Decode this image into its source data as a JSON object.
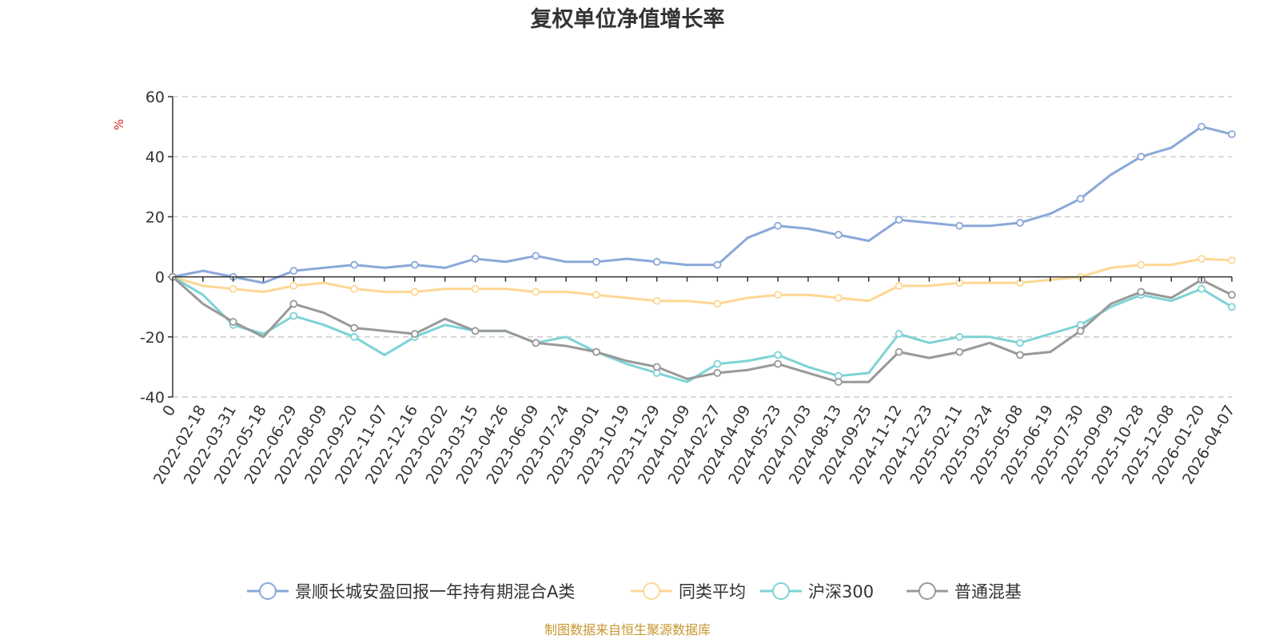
{
  "chart_data": {
    "type": "line",
    "title": "复权单位净值增长率",
    "ylabel": "%",
    "ylim": [
      -40,
      60
    ],
    "yticks": [
      "60",
      "40",
      "20",
      "0",
      "-20",
      "-40"
    ],
    "xticks": [
      "0",
      "2022-02-18",
      "2022-03-31",
      "2022-05-18",
      "2022-06-29",
      "2022-08-09",
      "2022-09-20",
      "2022-11-07",
      "2022-12-16",
      "2023-02-02",
      "2023-03-15",
      "2023-04-26",
      "2023-06-09",
      "2023-07-24",
      "2023-09-01",
      "2023-10-19",
      "2023-11-29",
      "2024-01-09",
      "2024-02-27",
      "2024-04-09",
      "2024-05-23",
      "2024-07-03",
      "2024-08-13",
      "2024-09-25",
      "2024-11-12",
      "2024-12-23",
      "2025-02-11",
      "2025-03-24",
      "2025-05-08",
      "2025-06-19",
      "2025-07-30",
      "2025-09-09",
      "2025-10-28",
      "2025-12-08",
      "2026-01-20",
      "2026-04-07"
    ],
    "grid": true,
    "legend_position": "bottom",
    "series": [
      {
        "name": "景顺长城安盈回报一年持有期混合A类",
        "color": "#8aa8d9",
        "x": [
          0,
          1,
          2,
          3,
          4,
          5,
          6,
          7,
          8,
          9,
          10,
          11,
          12,
          13,
          14,
          15,
          16,
          17,
          18,
          19,
          20,
          21,
          22,
          23,
          24,
          25,
          26,
          27,
          28,
          29,
          30,
          31,
          32,
          33,
          34,
          35
        ],
        "values": [
          0,
          2,
          0,
          -2,
          2,
          3,
          4,
          3,
          4,
          3,
          6,
          5,
          7,
          5,
          5,
          6,
          5,
          4,
          4,
          13,
          17,
          16,
          14,
          12,
          19,
          18,
          17,
          17,
          18,
          21,
          26,
          34,
          40,
          43,
          50,
          47.5
        ]
      },
      {
        "name": "同类平均",
        "color": "#fdd794",
        "x": [
          0,
          1,
          2,
          3,
          4,
          5,
          6,
          7,
          8,
          9,
          10,
          11,
          12,
          13,
          14,
          15,
          16,
          17,
          18,
          19,
          20,
          21,
          22,
          23,
          24,
          25,
          26,
          27,
          28,
          29,
          30,
          31,
          32,
          33,
          34,
          35
        ],
        "values": [
          0,
          -3,
          -4,
          -5,
          -3,
          -2,
          -4,
          -5,
          -5,
          -4,
          -4,
          -4,
          -5,
          -5,
          -6,
          -7,
          -8,
          -8,
          -9,
          -7,
          -6,
          -6,
          -7,
          -8,
          -3,
          -3,
          -2,
          -2,
          -2,
          -1,
          0,
          3,
          4,
          4,
          6,
          5.5
        ]
      },
      {
        "name": "沪深300",
        "color": "#7dd3d6",
        "x": [
          0,
          1,
          2,
          3,
          4,
          5,
          6,
          7,
          8,
          9,
          10,
          11,
          12,
          13,
          14,
          15,
          16,
          17,
          18,
          19,
          20,
          21,
          22,
          23,
          24,
          25,
          26,
          27,
          28,
          29,
          30,
          31,
          32,
          33,
          34,
          35
        ],
        "values": [
          0,
          -6,
          -16,
          -19,
          -13,
          -16,
          -20,
          -26,
          -20,
          -16,
          -18,
          -18,
          -22,
          -20,
          -25,
          -29,
          -32,
          -35,
          -29,
          -28,
          -26,
          -30,
          -33,
          -32,
          -19,
          -22,
          -20,
          -20,
          -22,
          -19,
          -16,
          -10,
          -6,
          -8,
          -4,
          -10
        ]
      },
      {
        "name": "普通混基",
        "color": "#999999",
        "x": [
          0,
          1,
          2,
          3,
          4,
          5,
          6,
          7,
          8,
          9,
          10,
          11,
          12,
          13,
          14,
          15,
          16,
          17,
          18,
          19,
          20,
          21,
          22,
          23,
          24,
          25,
          26,
          27,
          28,
          29,
          30,
          31,
          32,
          33,
          34,
          35
        ],
        "values": [
          0,
          -9,
          -15,
          -20,
          -9,
          -12,
          -17,
          -18,
          -19,
          -14,
          -18,
          -18,
          -22,
          -23,
          -25,
          -28,
          -30,
          -34,
          -32,
          -31,
          -29,
          -32,
          -35,
          -35,
          -25,
          -27,
          -25,
          -22,
          -26,
          -25,
          -18,
          -9,
          -5,
          -7,
          -1,
          -6
        ]
      }
    ]
  },
  "footer": {
    "source": "制图数据来自恒生聚源数据库"
  }
}
